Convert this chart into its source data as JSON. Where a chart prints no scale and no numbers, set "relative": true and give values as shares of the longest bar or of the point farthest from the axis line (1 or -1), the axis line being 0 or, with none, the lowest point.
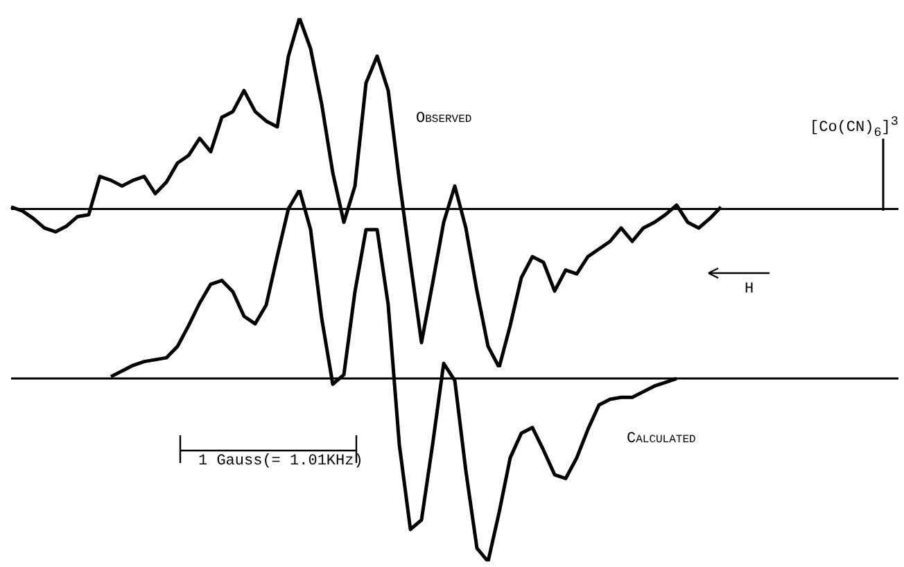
{
  "chart_data": [
    {
      "type": "line",
      "relative": true,
      "categories": [
        null,
        null,
        null,
        null,
        null,
        null,
        null,
        null,
        null,
        null,
        null,
        null,
        null,
        null,
        null,
        null,
        null,
        null,
        null,
        null,
        null,
        null,
        null,
        null,
        null,
        null,
        null,
        null,
        null,
        null,
        null,
        null,
        null,
        null,
        null,
        null,
        null,
        null,
        null,
        null,
        null,
        null,
        null,
        null,
        null,
        null,
        null,
        null,
        null,
        null,
        null,
        null,
        null,
        null,
        null,
        null,
        null,
        null,
        null,
        null,
        null,
        null,
        null,
        null,
        null,
        null,
        null,
        null,
        null,
        null,
        null,
        null,
        null,
        null,
        null,
        null,
        null,
        null,
        null,
        null,
        null
      ],
      "series": [
        {
          "color": "#000000",
          "values": [
            0.01,
            -0.01,
            -0.05,
            -0.1,
            -0.12,
            -0.09,
            -0.04,
            -0.03,
            0.17,
            0.15,
            0.12,
            0.15,
            0.17,
            0.08,
            0.14,
            0.24,
            0.28,
            0.37,
            0.3,
            0.48,
            0.51,
            0.62,
            0.51,
            0.46,
            0.43,
            0.8,
            1,
            0.84,
            0.55,
            0.19,
            -0.07,
            0.12,
            0.66,
            0.8,
            0.62,
            0.15,
            -0.28,
            -0.7,
            -0.39,
            -0.07,
            0.12,
            -0.1,
            -0.43,
            -0.72,
            -0.83,
            -0.61,
            -0.36,
            -0.25,
            -0.28,
            -0.43,
            -0.32,
            -0.34,
            -0.25,
            -0.21,
            -0.17,
            -0.1,
            -0.17,
            -0.1,
            -0.07,
            -0.03,
            0.02,
            -0.07,
            -0.1,
            -0.05,
            0.01,
            null,
            null,
            null,
            null,
            null,
            null,
            null,
            null,
            null,
            null,
            null,
            null,
            null,
            null,
            null,
            null
          ]
        }
      ],
      "annotations": [
        "Observed",
        "[Co(CN)$_{6}$]$^{3}$",
        "H"
      ]
    },
    {
      "type": "line",
      "relative": true,
      "categories": [
        null,
        null,
        null,
        null,
        null,
        null,
        null,
        null,
        null,
        null,
        null,
        null,
        null,
        null,
        null,
        null,
        null,
        null,
        null,
        null,
        null,
        null,
        null,
        null,
        null,
        null,
        null,
        null,
        null,
        null,
        null,
        null,
        null,
        null,
        null,
        null,
        null,
        null,
        null,
        null,
        null,
        null,
        null,
        null,
        null,
        null,
        null,
        null,
        null,
        null,
        null,
        null,
        null,
        null,
        null,
        null,
        null,
        null,
        null,
        null,
        null,
        null,
        null,
        null,
        null,
        null,
        null,
        null,
        null,
        null,
        null,
        null,
        null,
        null,
        null,
        null,
        null,
        null,
        null,
        null,
        null
      ],
      "series": [
        {
          "color": "#000000",
          "values": [
            null,
            null,
            null,
            null,
            null,
            null,
            null,
            null,
            null,
            0.01,
            0.04,
            0.07,
            0.09,
            0.1,
            0.11,
            0.17,
            0.28,
            0.4,
            0.5,
            0.52,
            0.46,
            0.33,
            0.29,
            0.39,
            0.65,
            0.9,
            1,
            0.79,
            0.32,
            -0.03,
            0.02,
            0.46,
            0.79,
            0.79,
            0.39,
            -0.35,
            -0.8,
            -0.75,
            -0.35,
            0.08,
            -0.01,
            -0.49,
            -0.9,
            -0.97,
            -0.71,
            -0.42,
            -0.29,
            -0.26,
            -0.38,
            -0.51,
            -0.53,
            -0.42,
            -0.27,
            -0.14,
            -0.11,
            -0.1,
            -0.1,
            -0.07,
            -0.04,
            -0.02,
            0,
            null,
            null,
            null,
            null,
            null,
            null,
            null,
            null,
            null,
            null,
            null,
            null,
            null,
            null,
            null,
            null,
            null,
            null,
            null,
            null
          ]
        }
      ],
      "annotations": [
        "Calculated",
        "1 Gauss(= 1.01KHz)"
      ]
    }
  ]
}
